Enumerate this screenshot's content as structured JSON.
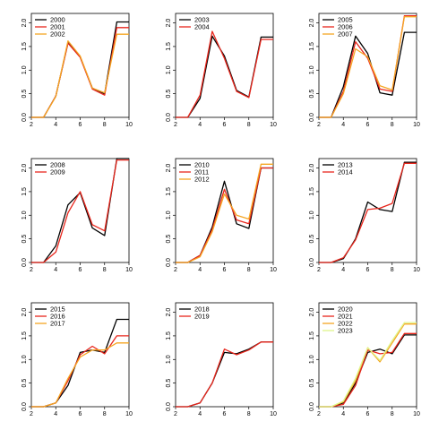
{
  "chart_data": [
    {
      "type": "line",
      "x": [
        2,
        3,
        4,
        5,
        6,
        7,
        8,
        9,
        10
      ],
      "xlim": [
        2,
        10
      ],
      "ylim": [
        0,
        2.2
      ],
      "xticks": [
        "2",
        "4",
        "6",
        "8",
        "10"
      ],
      "yticks": [
        "0.0",
        "0.5",
        "1.0",
        "1.5",
        "2.0"
      ],
      "legend_position": "top-left",
      "series": [
        {
          "name": "2000",
          "color": "#000000",
          "values": [
            0.0,
            0.0,
            0.45,
            1.58,
            1.28,
            0.62,
            0.5,
            2.02,
            2.02
          ]
        },
        {
          "name": "2001",
          "color": "#e8261c",
          "values": [
            0.0,
            0.0,
            0.45,
            1.57,
            1.27,
            0.6,
            0.47,
            1.9,
            1.9
          ]
        },
        {
          "name": "2002",
          "color": "#f5a623",
          "values": [
            0.0,
            0.0,
            0.44,
            1.62,
            1.3,
            0.62,
            0.52,
            1.76,
            1.76
          ]
        }
      ]
    },
    {
      "type": "line",
      "x": [
        2,
        3,
        4,
        5,
        6,
        7,
        8,
        9,
        10
      ],
      "xlim": [
        2,
        10
      ],
      "ylim": [
        0,
        2.2
      ],
      "xticks": [
        "2",
        "4",
        "6",
        "8",
        "10"
      ],
      "yticks": [
        "0.0",
        "0.5",
        "1.0",
        "1.5",
        "2.0"
      ],
      "legend_position": "top-left",
      "series": [
        {
          "name": "2003",
          "color": "#000000",
          "values": [
            0.0,
            0.0,
            0.4,
            1.72,
            1.3,
            0.57,
            0.43,
            1.7,
            1.7
          ]
        },
        {
          "name": "2004",
          "color": "#e8261c",
          "values": [
            0.0,
            0.0,
            0.47,
            1.82,
            1.25,
            0.55,
            0.42,
            1.65,
            1.65
          ]
        }
      ]
    },
    {
      "type": "line",
      "x": [
        2,
        3,
        4,
        5,
        6,
        7,
        8,
        9,
        10
      ],
      "xlim": [
        2,
        10
      ],
      "ylim": [
        0,
        2.2
      ],
      "xticks": [
        "2",
        "4",
        "6",
        "8",
        "10"
      ],
      "yticks": [
        "0.0",
        "0.5",
        "1.0",
        "1.5",
        "2.0"
      ],
      "legend_position": "top-left",
      "series": [
        {
          "name": "2005",
          "color": "#000000",
          "values": [
            0.0,
            0.0,
            0.65,
            1.72,
            1.35,
            0.52,
            0.47,
            1.8,
            1.8
          ]
        },
        {
          "name": "2006",
          "color": "#e8261c",
          "values": [
            0.0,
            0.0,
            0.55,
            1.6,
            1.25,
            0.6,
            0.55,
            2.15,
            2.15
          ]
        },
        {
          "name": "2007",
          "color": "#f5a623",
          "values": [
            0.0,
            0.0,
            0.5,
            1.45,
            1.28,
            0.67,
            0.58,
            2.13,
            2.13
          ]
        }
      ]
    },
    {
      "type": "line",
      "x": [
        2,
        3,
        4,
        5,
        6,
        7,
        8,
        9,
        10
      ],
      "xlim": [
        2,
        10
      ],
      "ylim": [
        0,
        2.2
      ],
      "xticks": [
        "2",
        "4",
        "6",
        "8",
        "10"
      ],
      "yticks": [
        "0.0",
        "0.5",
        "1.0",
        "1.5",
        "2.0"
      ],
      "legend_position": "top-left",
      "series": [
        {
          "name": "2008",
          "color": "#000000",
          "values": [
            0.0,
            0.0,
            0.35,
            1.22,
            1.48,
            0.73,
            0.57,
            2.2,
            2.2
          ]
        },
        {
          "name": "2009",
          "color": "#e8261c",
          "values": [
            0.0,
            0.0,
            0.22,
            1.05,
            1.5,
            0.8,
            0.67,
            2.17,
            2.17
          ]
        }
      ]
    },
    {
      "type": "line",
      "x": [
        2,
        3,
        4,
        5,
        6,
        7,
        8,
        9,
        10
      ],
      "xlim": [
        2,
        10
      ],
      "ylim": [
        0,
        2.2
      ],
      "xticks": [
        "2",
        "4",
        "6",
        "8",
        "10"
      ],
      "yticks": [
        "0.0",
        "0.5",
        "1.0",
        "1.5",
        "2.0"
      ],
      "legend_position": "top-left",
      "series": [
        {
          "name": "2010",
          "color": "#000000",
          "values": [
            0.0,
            0.0,
            0.15,
            0.75,
            1.72,
            0.82,
            0.72,
            2.0,
            2.0
          ]
        },
        {
          "name": "2011",
          "color": "#e8261c",
          "values": [
            0.0,
            0.0,
            0.15,
            0.7,
            1.55,
            0.9,
            0.82,
            2.0,
            2.0
          ]
        },
        {
          "name": "2012",
          "color": "#f5a623",
          "values": [
            0.0,
            0.0,
            0.12,
            0.65,
            1.45,
            1.0,
            0.92,
            2.08,
            2.08
          ]
        }
      ]
    },
    {
      "type": "line",
      "x": [
        2,
        3,
        4,
        5,
        6,
        7,
        8,
        9,
        10
      ],
      "xlim": [
        2,
        10
      ],
      "ylim": [
        0,
        2.2
      ],
      "xticks": [
        "2",
        "4",
        "6",
        "8",
        "10"
      ],
      "yticks": [
        "0.0",
        "0.5",
        "1.0",
        "1.5",
        "2.0"
      ],
      "legend_position": "top-left",
      "series": [
        {
          "name": "2013",
          "color": "#000000",
          "values": [
            0.0,
            0.0,
            0.08,
            0.5,
            1.28,
            1.12,
            1.08,
            2.12,
            2.12
          ]
        },
        {
          "name": "2014",
          "color": "#e8261c",
          "values": [
            0.0,
            0.0,
            0.1,
            0.48,
            1.12,
            1.15,
            1.25,
            2.1,
            2.1
          ]
        }
      ]
    },
    {
      "type": "line",
      "x": [
        2,
        3,
        4,
        5,
        6,
        7,
        8,
        9,
        10
      ],
      "xlim": [
        2,
        10
      ],
      "ylim": [
        0,
        2.2
      ],
      "xticks": [
        "2",
        "4",
        "6",
        "8",
        "10"
      ],
      "yticks": [
        "0.0",
        "0.5",
        "1.0",
        "1.5",
        "2.0"
      ],
      "legend_position": "top-left",
      "series": [
        {
          "name": "2015",
          "color": "#000000",
          "values": [
            0.0,
            0.0,
            0.08,
            0.45,
            1.15,
            1.2,
            1.15,
            1.85,
            1.85
          ]
        },
        {
          "name": "2016",
          "color": "#e8261c",
          "values": [
            0.0,
            0.0,
            0.08,
            0.55,
            1.1,
            1.28,
            1.12,
            1.5,
            1.5
          ]
        },
        {
          "name": "2017",
          "color": "#f5a623",
          "values": [
            0.0,
            0.0,
            0.08,
            0.6,
            1.05,
            1.2,
            1.2,
            1.35,
            1.35
          ]
        }
      ]
    },
    {
      "type": "line",
      "x": [
        2,
        3,
        4,
        5,
        6,
        7,
        8,
        9,
        10
      ],
      "xlim": [
        2,
        10
      ],
      "ylim": [
        0,
        2.2
      ],
      "xticks": [
        "2",
        "4",
        "6",
        "8",
        "10"
      ],
      "yticks": [
        "0.0",
        "0.5",
        "1.0",
        "1.5",
        "2.0"
      ],
      "legend_position": "top-left",
      "series": [
        {
          "name": "2018",
          "color": "#000000",
          "values": [
            0.0,
            0.0,
            0.08,
            0.5,
            1.15,
            1.12,
            1.22,
            1.37,
            1.37
          ]
        },
        {
          "name": "2019",
          "color": "#e8261c",
          "values": [
            0.0,
            0.0,
            0.08,
            0.5,
            1.22,
            1.1,
            1.2,
            1.37,
            1.37
          ]
        }
      ]
    },
    {
      "type": "line",
      "x": [
        2,
        3,
        4,
        5,
        6,
        7,
        8,
        9,
        10
      ],
      "xlim": [
        2,
        10
      ],
      "ylim": [
        0,
        2.2
      ],
      "xticks": [
        "2",
        "4",
        "6",
        "8",
        "10"
      ],
      "yticks": [
        "0.0",
        "0.5",
        "1.0",
        "1.5",
        "2.0"
      ],
      "legend_position": "top-left",
      "series": [
        {
          "name": "2020",
          "color": "#000000",
          "values": [
            0.0,
            0.0,
            0.08,
            0.5,
            1.15,
            1.22,
            1.12,
            1.52,
            1.52
          ]
        },
        {
          "name": "2021",
          "color": "#e8261c",
          "values": [
            0.0,
            0.0,
            0.05,
            0.45,
            1.2,
            1.12,
            1.15,
            1.55,
            1.55
          ]
        },
        {
          "name": "2022",
          "color": "#f5a623",
          "values": [
            0.0,
            0.0,
            0.1,
            0.55,
            1.25,
            0.95,
            1.35,
            1.75,
            1.75
          ]
        },
        {
          "name": "2023",
          "color": "#dff58a",
          "values": [
            0.0,
            0.0,
            0.12,
            0.6,
            1.25,
            0.98,
            1.4,
            1.78,
            1.78
          ]
        }
      ]
    }
  ]
}
